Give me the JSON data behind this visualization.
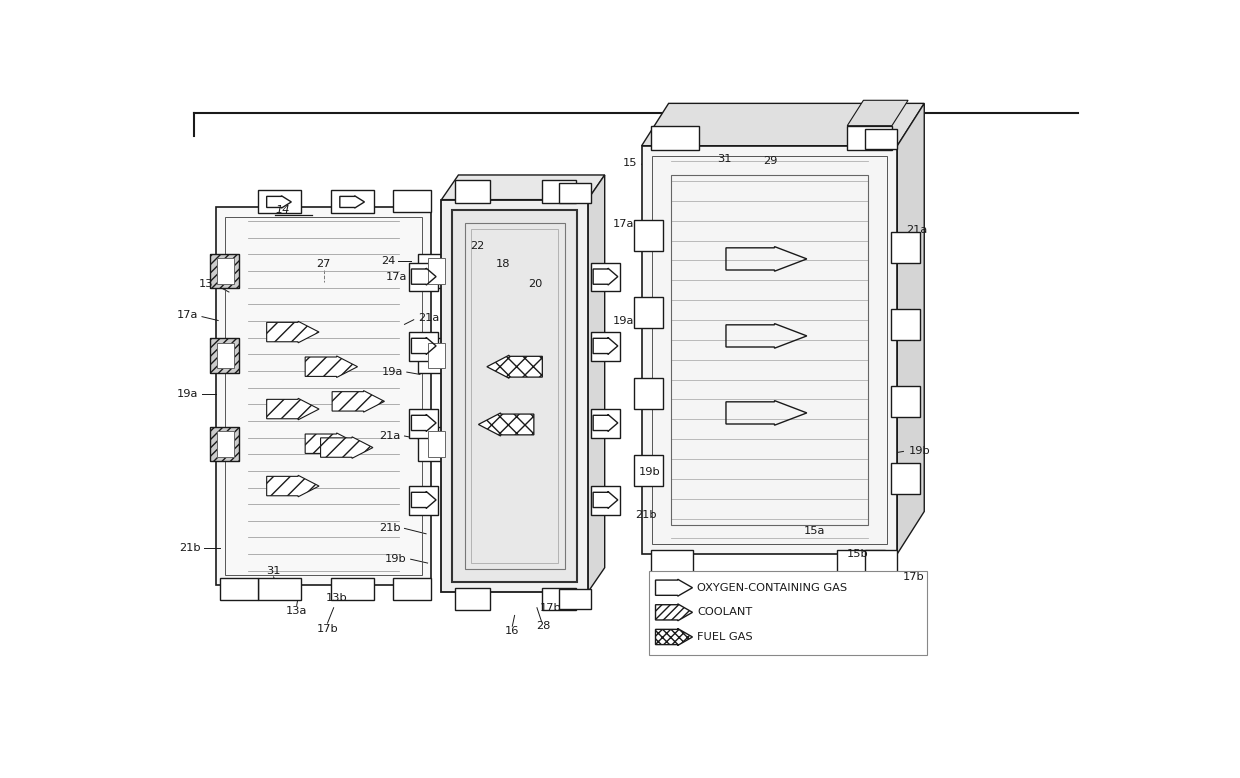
{
  "bg_color": "#ffffff",
  "lc": "#1a1a1a",
  "fig_w": 12.4,
  "fig_h": 7.78,
  "legend_items": [
    {
      "label": "OXYGEN-CONTAINING GAS",
      "style": "open"
    },
    {
      "label": "COOLANT",
      "style": "diag"
    },
    {
      "label": "FUEL GAS",
      "style": "cross"
    }
  ]
}
